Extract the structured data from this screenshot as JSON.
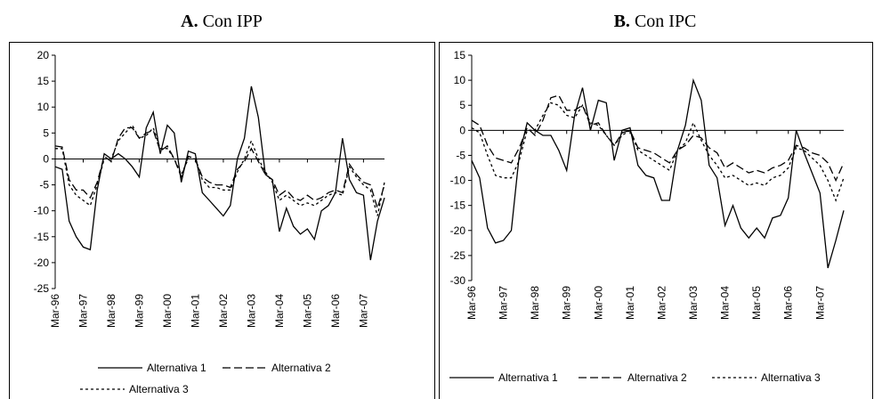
{
  "chart_data": [
    {
      "type": "line",
      "label": "A.",
      "title": "Con IPP",
      "categories": [
        "Mar-96",
        null,
        null,
        null,
        "Mar-97",
        null,
        null,
        null,
        "Mar-98",
        null,
        null,
        null,
        "Mar-99",
        null,
        null,
        null,
        "Mar-00",
        null,
        null,
        null,
        "Mar-01",
        null,
        null,
        null,
        "Mar-02",
        null,
        null,
        null,
        "Mar-03",
        null,
        null,
        null,
        "Mar-04",
        null,
        null,
        null,
        "Mar-05",
        null,
        null,
        null,
        "Mar-06",
        null,
        null,
        null,
        "Mar-07",
        null,
        null,
        null
      ],
      "ylim": [
        -25,
        20
      ],
      "yticks": [
        -25,
        -20,
        -15,
        -10,
        -5,
        0,
        5,
        10,
        15,
        20
      ],
      "series": [
        {
          "name": "Alternativa 1",
          "color": "#000000",
          "dash": "solid",
          "values": [
            -1.5,
            -2,
            -12,
            -15,
            -17,
            -17.5,
            -6,
            1,
            0,
            1,
            0,
            -1.5,
            -3.5,
            6,
            9,
            1,
            6.5,
            5,
            -4.5,
            1.5,
            1,
            -6.5,
            -8,
            -9.5,
            -11,
            -9,
            0,
            4,
            14,
            8,
            -3,
            -4,
            -14,
            -9.5,
            -13,
            -14.5,
            -13.5,
            -15.5,
            -10,
            -9,
            -6.5,
            4,
            -4,
            -6.5,
            -7,
            -19.5,
            -12,
            -7.5
          ]
        },
        {
          "name": "Alternativa 2",
          "color": "#000000",
          "dash": "dashed",
          "values": [
            2.5,
            2.3,
            -4,
            -6,
            -6,
            -7.5,
            -4.5,
            0.5,
            -0.5,
            4,
            6,
            6,
            4,
            5,
            5.5,
            1.5,
            2.5,
            0,
            -3.5,
            0.5,
            0,
            -3.5,
            -4.5,
            -5,
            -5,
            -5.5,
            -2,
            -0.5,
            2,
            -0.5,
            -3,
            -4,
            -7,
            -6,
            -7.5,
            -8,
            -7,
            -8,
            -7.5,
            -6.5,
            -6,
            -6.5,
            -1,
            -3,
            -4.5,
            -5,
            -9.5,
            -5
          ]
        },
        {
          "name": "Alternativa 3",
          "color": "#000000",
          "dash": "dotted",
          "values": [
            2,
            2,
            -5,
            -7,
            -8,
            -9,
            -5,
            0,
            0,
            3.5,
            5,
            6.5,
            4,
            4.5,
            6,
            2,
            2,
            0,
            -3,
            0,
            0,
            -4,
            -5.5,
            -5.5,
            -6,
            -6,
            -2.5,
            0,
            3.5,
            0,
            -2.5,
            -4.5,
            -8,
            -7,
            -8,
            -9,
            -8.5,
            -9,
            -8,
            -7,
            -6.5,
            -7,
            -1.5,
            -3.5,
            -5,
            -6,
            -11,
            -4.5
          ]
        }
      ]
    },
    {
      "type": "line",
      "label": "B.",
      "title": "Con IPC",
      "categories": [
        "Mar-96",
        null,
        null,
        null,
        "Mar-97",
        null,
        null,
        null,
        "Mar-98",
        null,
        null,
        null,
        "Mar-99",
        null,
        null,
        null,
        "Mar-00",
        null,
        null,
        null,
        "Mar-01",
        null,
        null,
        null,
        "Mar-02",
        null,
        null,
        null,
        "Mar-03",
        null,
        null,
        null,
        "Mar-04",
        null,
        null,
        null,
        "Mar-05",
        null,
        null,
        null,
        "Mar-06",
        null,
        null,
        null,
        "Mar-07",
        null,
        null,
        null
      ],
      "ylim": [
        -30,
        15
      ],
      "yticks": [
        -30,
        -25,
        -20,
        -15,
        -10,
        -5,
        0,
        5,
        10,
        15
      ],
      "series": [
        {
          "name": "Alternativa 1",
          "color": "#000000",
          "dash": "solid",
          "values": [
            -6,
            -9.5,
            -19.5,
            -22.5,
            -22,
            -20,
            -5,
            1.5,
            0,
            -1,
            -1,
            -4,
            -8,
            3,
            8.5,
            0,
            6,
            5.5,
            -6,
            0,
            0.5,
            -7,
            -9,
            -9.5,
            -14,
            -14,
            -4,
            1,
            10,
            6,
            -7,
            -9.5,
            -19,
            -15,
            -19.5,
            -21.5,
            -19.5,
            -21.5,
            -17.5,
            -17,
            -13.5,
            0,
            -4.5,
            -8.5,
            -12.5,
            -27.5,
            -22,
            -16
          ]
        },
        {
          "name": "Alternativa 2",
          "color": "#000000",
          "dash": "dashed",
          "values": [
            2,
            1,
            -3,
            -5.5,
            -6,
            -6.5,
            -3.5,
            0.5,
            -1,
            2,
            6.5,
            7,
            4,
            4,
            5,
            1,
            1.5,
            -1,
            -3,
            -0.5,
            0,
            -3.5,
            -4,
            -4.5,
            -5.5,
            -6.5,
            -4,
            -3,
            -1,
            -1.5,
            -3.5,
            -4.5,
            -7.5,
            -6.5,
            -7.5,
            -8.5,
            -8,
            -8.5,
            -7.5,
            -7,
            -6,
            -3,
            -3.5,
            -4.5,
            -5,
            -6.5,
            -10,
            -6.5
          ]
        },
        {
          "name": "Alternativa 3",
          "color": "#000000",
          "dash": "dotted",
          "values": [
            0.5,
            -0.5,
            -5,
            -9,
            -9.5,
            -9.5,
            -6,
            0,
            0,
            3,
            5.5,
            5,
            3,
            2.5,
            5,
            1.5,
            1,
            -1,
            -3,
            -1,
            0,
            -4,
            -5,
            -6,
            -7,
            -8,
            -4,
            -2.5,
            1.5,
            -2,
            -5,
            -7,
            -9.5,
            -9,
            -10,
            -11,
            -10.5,
            -11,
            -9.5,
            -9,
            -7.5,
            -3.5,
            -4,
            -5.5,
            -7,
            -10,
            -14,
            -9.5
          ]
        }
      ]
    }
  ]
}
